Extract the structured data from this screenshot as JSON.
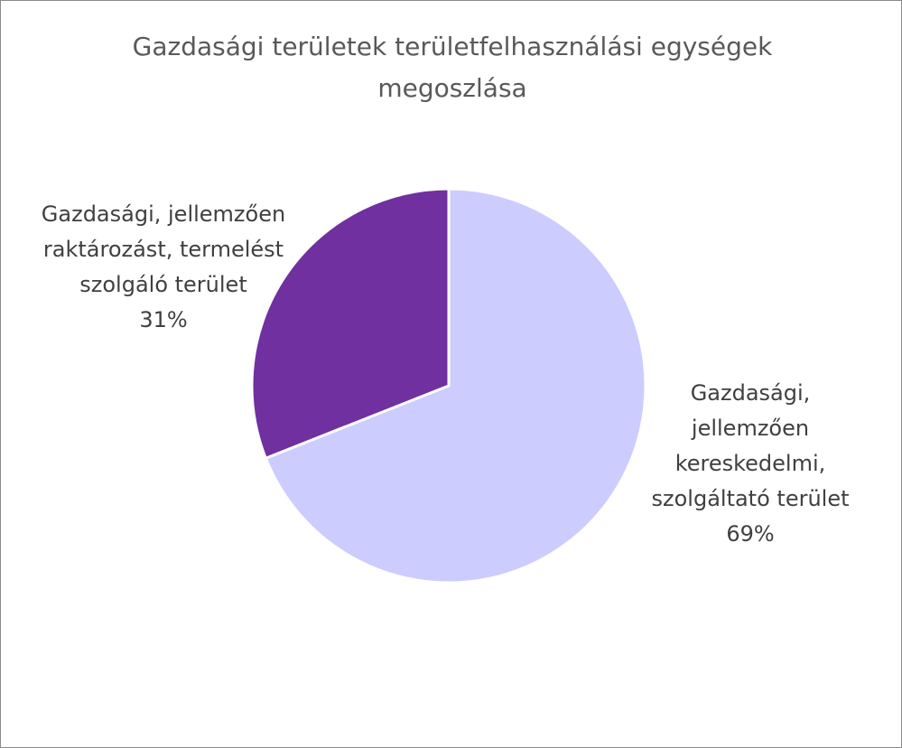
{
  "chart_data": {
    "type": "pie",
    "title": "Gazdasági területek területfelhasználási egységek megoszlása",
    "slices": [
      {
        "label_lines": [
          "Gazdasági,",
          "jellemzően",
          "kereskedelmi,",
          "szolgáltató terület"
        ],
        "percent_label": "69%",
        "value": 69,
        "color": "#ccccff"
      },
      {
        "label_lines": [
          "Gazdasági, jellemzően",
          "raktározást, termelést",
          "szolgáló terület"
        ],
        "percent_label": "31%",
        "value": 31,
        "color": "#7030a0"
      }
    ]
  }
}
